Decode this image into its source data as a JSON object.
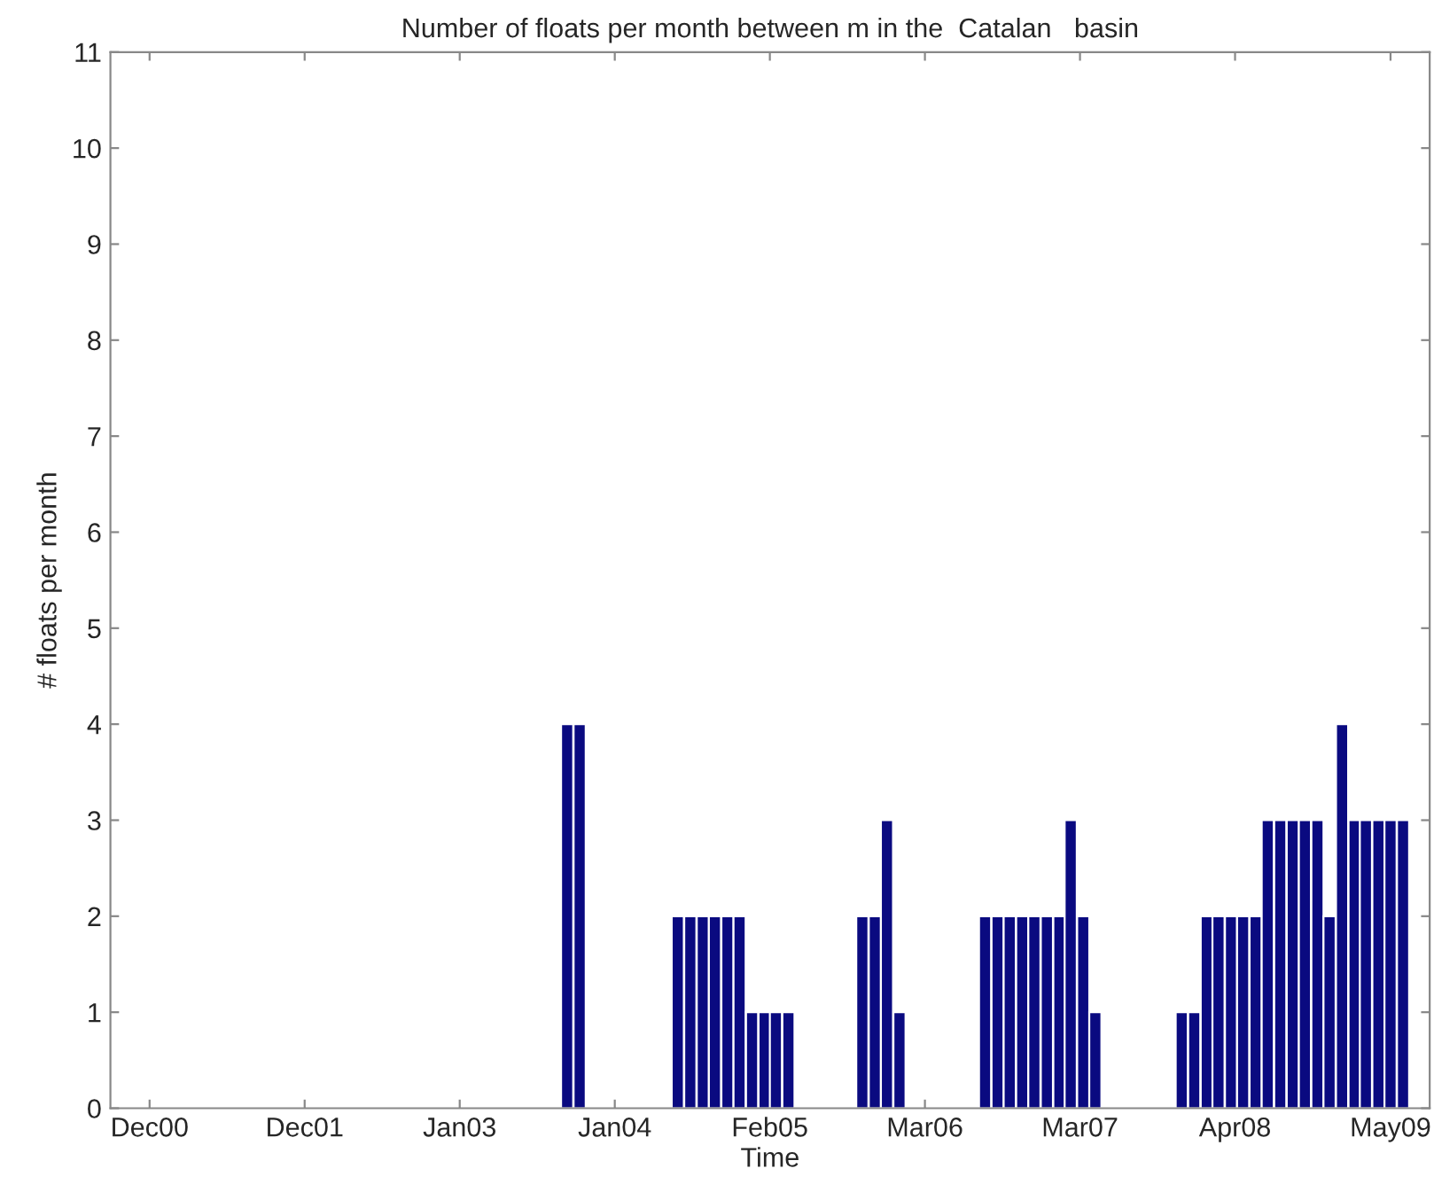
{
  "chart_data": {
    "type": "bar",
    "title": "Number of floats per month between m in the  Catalan   basin",
    "xlabel": "Time",
    "ylabel": "# floats per month",
    "x": [
      "2003-10",
      "2003-11",
      "2004-07",
      "2004-08",
      "2004-09",
      "2004-10",
      "2004-11",
      "2004-12",
      "2005-01",
      "2005-02",
      "2005-03",
      "2005-04",
      "2005-10",
      "2005-11",
      "2005-12",
      "2006-01",
      "2006-08",
      "2006-09",
      "2006-10",
      "2006-11",
      "2006-12",
      "2007-01",
      "2007-02",
      "2007-03",
      "2007-04",
      "2007-05",
      "2007-12",
      "2008-01",
      "2008-02",
      "2008-03",
      "2008-04",
      "2008-05",
      "2008-06",
      "2008-07",
      "2008-08",
      "2008-09",
      "2008-10",
      "2008-11",
      "2008-12",
      "2009-01",
      "2009-02",
      "2009-03",
      "2009-04",
      "2009-05",
      "2009-06"
    ],
    "values": [
      4,
      4,
      2,
      2,
      2,
      2,
      2,
      2,
      1,
      1,
      1,
      1,
      2,
      2,
      3,
      1,
      2,
      2,
      2,
      2,
      2,
      2,
      2,
      3,
      2,
      1,
      1,
      1,
      2,
      2,
      2,
      2,
      2,
      3,
      3,
      3,
      3,
      3,
      2,
      4,
      3,
      3,
      3,
      3,
      3
    ],
    "color": "#0a0a80",
    "xlim": [
      "2000-08-26",
      "2009-08-06"
    ],
    "xticks": [
      {
        "value": "2000-12-01",
        "label": "Dec00"
      },
      {
        "value": "2001-12-20",
        "label": "Dec01"
      },
      {
        "value": "2003-01-08",
        "label": "Jan03"
      },
      {
        "value": "2004-01-27",
        "label": "Jan04"
      },
      {
        "value": "2005-02-14",
        "label": "Feb05"
      },
      {
        "value": "2006-03-05",
        "label": "Mar06"
      },
      {
        "value": "2007-03-24",
        "label": "Mar07"
      },
      {
        "value": "2008-04-11",
        "label": "Apr08"
      },
      {
        "value": "2009-05-01",
        "label": "May09"
      }
    ],
    "ylim": [
      0,
      11
    ],
    "yticks": [
      0,
      1,
      2,
      3,
      4,
      5,
      6,
      7,
      8,
      9,
      10,
      11
    ],
    "grid": false,
    "legend": false
  }
}
